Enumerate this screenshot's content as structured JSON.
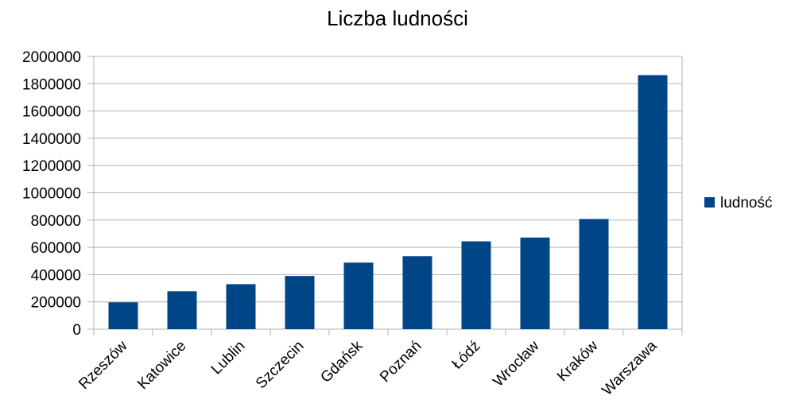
{
  "chart_data": {
    "type": "bar",
    "title": "Liczba ludności",
    "xlabel": "",
    "ylabel": "",
    "categories": [
      "Rzeszów",
      "Katowice",
      "Lublin",
      "Szczecin",
      "Gdańsk",
      "Poznań",
      "Łódź",
      "Wrocław",
      "Kraków",
      "Warszawa"
    ],
    "series": [
      {
        "name": "ludność",
        "color": "#004586",
        "values": [
          197000,
          278000,
          330000,
          390000,
          488000,
          535000,
          644000,
          672000,
          808000,
          1863000
        ]
      }
    ],
    "ylim": [
      0,
      2000000
    ],
    "yticks": [
      0,
      200000,
      400000,
      600000,
      800000,
      1000000,
      1200000,
      1400000,
      1600000,
      1800000,
      2000000
    ],
    "grid": true,
    "legend_position": "right"
  }
}
